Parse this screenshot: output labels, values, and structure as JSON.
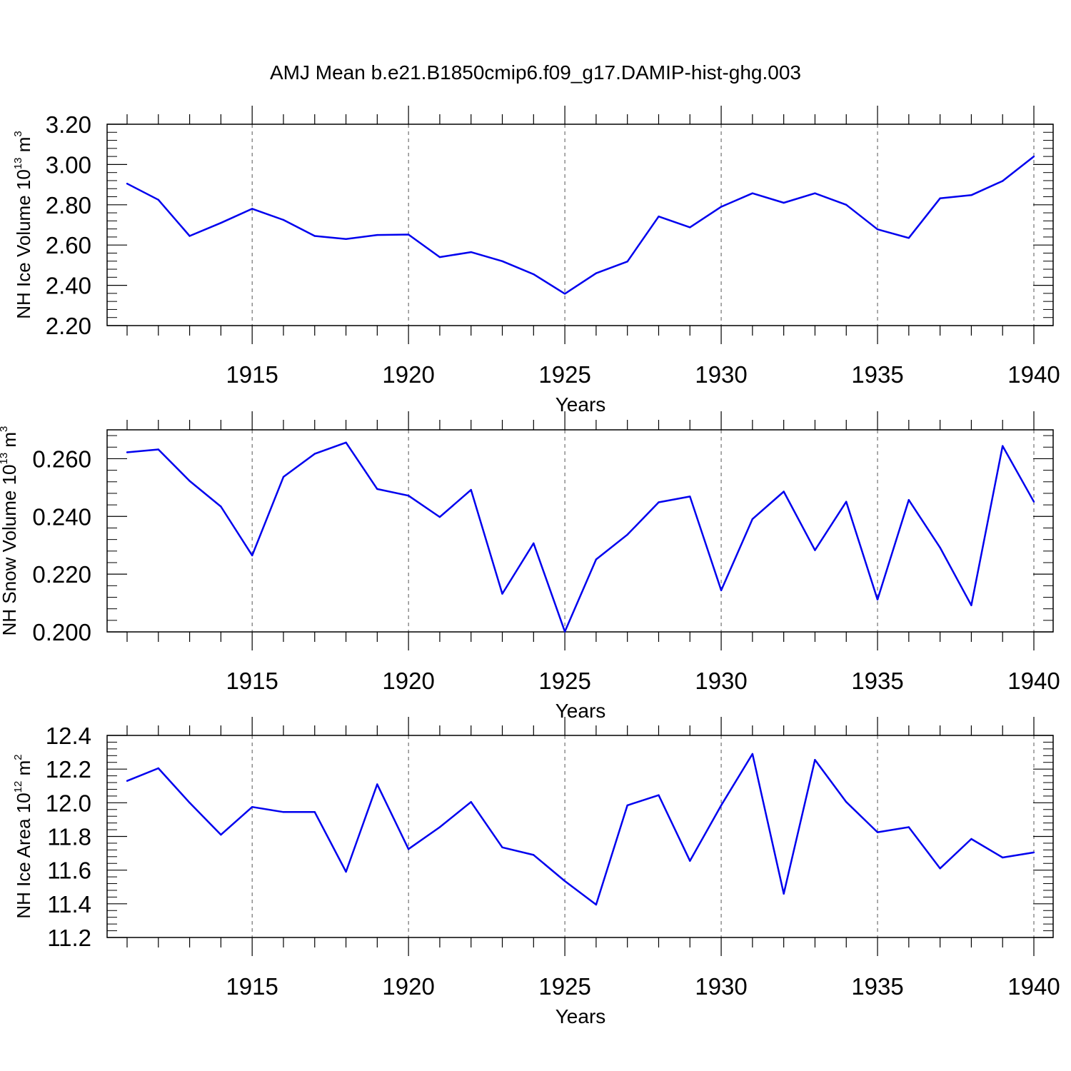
{
  "title": "AMJ Mean b.e21.B1850cmip6.f09_g17.DAMIP-hist-ghg.003",
  "colors": {
    "line": "#0000ee",
    "axis": "#000000",
    "grid": "#555555"
  },
  "chart_data": [
    {
      "type": "line",
      "ylabel": {
        "main": "NH Ice Volume 10",
        "exp": "13",
        "unit": " m",
        "unit_exp": "3"
      },
      "xlabel": "Years",
      "xlim": [
        1911,
        1940
      ],
      "ylim": [
        2.2,
        3.2
      ],
      "grid": "vertical dashed at major x ticks",
      "xticks": [
        {
          "value": 1915,
          "label": "1915"
        },
        {
          "value": 1920,
          "label": "1920"
        },
        {
          "value": 1925,
          "label": "1925"
        },
        {
          "value": 1930,
          "label": "1930"
        },
        {
          "value": 1935,
          "label": "1935"
        },
        {
          "value": 1940,
          "label": "1940"
        }
      ],
      "yticks": [
        {
          "value": 2.2,
          "label": "2.20"
        },
        {
          "value": 2.4,
          "label": "2.40"
        },
        {
          "value": 2.6,
          "label": "2.60"
        },
        {
          "value": 2.8,
          "label": "2.80"
        },
        {
          "value": 3.0,
          "label": "3.00"
        },
        {
          "value": 3.2,
          "label": "3.20"
        }
      ],
      "x": [
        1911,
        1912,
        1913,
        1914,
        1915,
        1916,
        1917,
        1918,
        1919,
        1920,
        1921,
        1922,
        1923,
        1924,
        1925,
        1926,
        1927,
        1928,
        1929,
        1930,
        1931,
        1932,
        1933,
        1934,
        1935,
        1936,
        1937,
        1938,
        1939,
        1940
      ],
      "values": [
        2.905,
        2.825,
        2.645,
        2.71,
        2.78,
        2.725,
        2.645,
        2.63,
        2.65,
        2.652,
        2.54,
        2.565,
        2.52,
        2.455,
        2.358,
        2.46,
        2.518,
        2.742,
        2.688,
        2.79,
        2.857,
        2.81,
        2.857,
        2.8,
        2.678,
        2.635,
        2.832,
        2.848,
        2.918,
        3.04
      ]
    },
    {
      "type": "line",
      "ylabel": {
        "main": "NH Snow Volume 10",
        "exp": "13",
        "unit": " m",
        "unit_exp": "3"
      },
      "xlabel": "Years",
      "xlim": [
        1911,
        1940
      ],
      "ylim": [
        0.2,
        0.27
      ],
      "grid": "vertical dashed at major x ticks",
      "xticks": [
        {
          "value": 1915,
          "label": "1915"
        },
        {
          "value": 1920,
          "label": "1920"
        },
        {
          "value": 1925,
          "label": "1925"
        },
        {
          "value": 1930,
          "label": "1930"
        },
        {
          "value": 1935,
          "label": "1935"
        },
        {
          "value": 1940,
          "label": "1940"
        }
      ],
      "yticks": [
        {
          "value": 0.2,
          "label": "0.200"
        },
        {
          "value": 0.22,
          "label": "0.220"
        },
        {
          "value": 0.24,
          "label": "0.240"
        },
        {
          "value": 0.26,
          "label": "0.260"
        }
      ],
      "x": [
        1911,
        1912,
        1913,
        1914,
        1915,
        1916,
        1917,
        1918,
        1919,
        1920,
        1921,
        1922,
        1923,
        1924,
        1925,
        1926,
        1927,
        1928,
        1929,
        1930,
        1931,
        1932,
        1933,
        1934,
        1935,
        1936,
        1937,
        1938,
        1939,
        1940
      ],
      "values": [
        0.2622,
        0.2632,
        0.2523,
        0.2434,
        0.2265,
        0.2537,
        0.2617,
        0.2656,
        0.2495,
        0.2472,
        0.2398,
        0.2492,
        0.2132,
        0.2307,
        0.2001,
        0.2251,
        0.2337,
        0.2449,
        0.2469,
        0.2144,
        0.2391,
        0.2486,
        0.2283,
        0.2451,
        0.2112,
        0.2457,
        0.2292,
        0.2092,
        0.2644,
        0.2451
      ]
    },
    {
      "type": "line",
      "ylabel": {
        "main": "NH Ice Area 10",
        "exp": "12",
        "unit": " m",
        "unit_exp": "2"
      },
      "xlabel": "Years",
      "xlim": [
        1911,
        1940
      ],
      "ylim": [
        11.2,
        12.4
      ],
      "grid": "vertical dashed at major x ticks",
      "xticks": [
        {
          "value": 1915,
          "label": "1915"
        },
        {
          "value": 1920,
          "label": "1920"
        },
        {
          "value": 1925,
          "label": "1925"
        },
        {
          "value": 1930,
          "label": "1930"
        },
        {
          "value": 1935,
          "label": "1935"
        },
        {
          "value": 1940,
          "label": "1940"
        }
      ],
      "yticks": [
        {
          "value": 11.2,
          "label": "11.2"
        },
        {
          "value": 11.4,
          "label": "11.4"
        },
        {
          "value": 11.6,
          "label": "11.6"
        },
        {
          "value": 11.8,
          "label": "11.8"
        },
        {
          "value": 12.0,
          "label": "12.0"
        },
        {
          "value": 12.2,
          "label": "12.2"
        },
        {
          "value": 12.4,
          "label": "12.4"
        }
      ],
      "x": [
        1911,
        1912,
        1913,
        1914,
        1915,
        1916,
        1917,
        1918,
        1919,
        1920,
        1921,
        1922,
        1923,
        1924,
        1925,
        1926,
        1927,
        1928,
        1929,
        1930,
        1931,
        1932,
        1933,
        1934,
        1935,
        1936,
        1937,
        1938,
        1939,
        1940
      ],
      "values": [
        12.13,
        12.205,
        12.0,
        11.81,
        11.975,
        11.945,
        11.945,
        11.59,
        12.11,
        11.725,
        11.855,
        12.005,
        11.735,
        11.69,
        11.535,
        11.395,
        11.985,
        12.045,
        11.655,
        11.985,
        12.29,
        11.46,
        12.255,
        12.005,
        11.825,
        11.855,
        11.61,
        11.785,
        11.675,
        11.705
      ]
    }
  ]
}
